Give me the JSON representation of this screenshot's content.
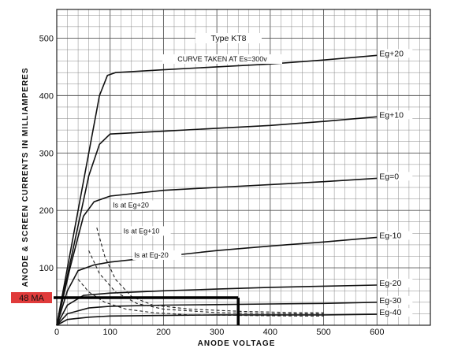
{
  "chart_data": {
    "type": "line",
    "title": "Type KT8",
    "subtitle": "CURVE TAKEN AT Es=300v",
    "xlabel": "ANODE VOLTAGE",
    "ylabel": "ANODE & SCREEN CURRENTS IN MILLIAMPERES",
    "xlim": [
      0,
      700
    ],
    "ylim": [
      0,
      550
    ],
    "xticks": [
      0,
      100,
      200,
      300,
      400,
      500,
      600
    ],
    "yticks": [
      100,
      200,
      300,
      400,
      500
    ],
    "grid": true,
    "anode_series": [
      {
        "name": "Eg+20",
        "x": [
          0,
          30,
          60,
          80,
          95,
          110,
          200,
          300,
          400,
          500,
          600
        ],
        "y": [
          0,
          150,
          300,
          400,
          435,
          440,
          445,
          450,
          455,
          462,
          470
        ]
      },
      {
        "name": "Eg+10",
        "x": [
          0,
          30,
          60,
          80,
          100,
          200,
          300,
          400,
          500,
          600
        ],
        "y": [
          0,
          130,
          260,
          315,
          333,
          338,
          343,
          348,
          355,
          363
        ]
      },
      {
        "name": "Eg=0",
        "x": [
          0,
          25,
          50,
          70,
          100,
          200,
          300,
          400,
          500,
          600
        ],
        "y": [
          0,
          100,
          190,
          215,
          225,
          235,
          240,
          245,
          250,
          256
        ]
      },
      {
        "name": "Eg-10",
        "x": [
          0,
          20,
          40,
          70,
          100,
          200,
          300,
          400,
          500,
          600
        ],
        "y": [
          0,
          60,
          95,
          105,
          110,
          120,
          130,
          138,
          145,
          153
        ]
      },
      {
        "name": "Eg-20",
        "x": [
          0,
          20,
          50,
          100,
          200,
          300,
          400,
          500,
          600
        ],
        "y": [
          0,
          35,
          52,
          56,
          60,
          63,
          66,
          68,
          70
        ]
      },
      {
        "name": "Eg-30",
        "x": [
          0,
          20,
          60,
          100,
          200,
          300,
          400,
          500,
          600
        ],
        "y": [
          0,
          20,
          30,
          33,
          35,
          36,
          37,
          38,
          40
        ]
      },
      {
        "name": "Eg-40",
        "x": [
          0,
          20,
          60,
          100,
          200,
          300,
          400,
          500,
          600
        ],
        "y": [
          0,
          10,
          14,
          16,
          17,
          18,
          18,
          18,
          19
        ]
      }
    ],
    "screen_series": [
      {
        "name": "Is at Eg+20",
        "x": [
          75,
          90,
          110,
          140,
          180,
          250,
          350,
          450,
          500
        ],
        "y": [
          170,
          120,
          80,
          50,
          35,
          28,
          24,
          22,
          22
        ]
      },
      {
        "name": "Is at Eg+10",
        "x": [
          60,
          80,
          110,
          150,
          200,
          300,
          400,
          500
        ],
        "y": [
          130,
          90,
          58,
          38,
          28,
          22,
          20,
          20
        ]
      },
      {
        "name": "Is at Eg-20",
        "x": [
          40,
          60,
          90,
          130,
          180,
          250,
          350,
          450,
          500
        ],
        "y": [
          80,
          58,
          40,
          28,
          22,
          18,
          17,
          16,
          16
        ]
      }
    ],
    "annotations": [
      {
        "text": "Is at Eg+20",
        "x": 105,
        "y": 205
      },
      {
        "text": "Is at Eg+10",
        "x": 125,
        "y": 160
      },
      {
        "text": "Is at Eg-20",
        "x": 145,
        "y": 118
      }
    ],
    "marker": {
      "label": "48 MA",
      "y": 48,
      "x": 340,
      "color": "#e03b3b"
    }
  }
}
